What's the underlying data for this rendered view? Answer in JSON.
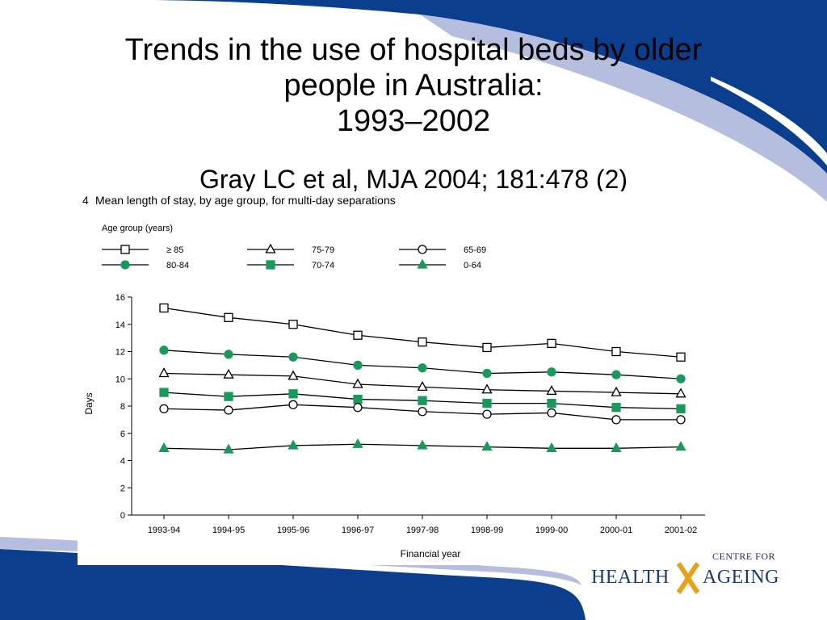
{
  "slide": {
    "title_lines": [
      "Trends in the use of hospital beds by older",
      "people in Australia:",
      "1993–2002"
    ],
    "citation": "Gray LC et al, MJA 2004; 181:478 (2)"
  },
  "logo": {
    "top_text": "CENTRE FOR",
    "left_word": "HEALTH",
    "right_word": "AGEING",
    "colors": {
      "text": "#1a3a7a",
      "x_mark": "#e8a21a"
    }
  },
  "colors": {
    "header_band": "#0b3f8e",
    "swoosh": "#b6bedf",
    "footer_band": "#0b3f8e",
    "series_green": "#1a9a5a",
    "series_black": "#000000"
  },
  "chart_data": {
    "type": "line",
    "figure_label": "4",
    "title": "Mean length of stay, by age group, for multi-day separations",
    "legend_title": "Age group (years)",
    "xlabel": "Financial year",
    "ylabel": "Days",
    "ylim": [
      0,
      16
    ],
    "yticks": [
      0,
      2,
      4,
      6,
      8,
      10,
      12,
      14,
      16
    ],
    "categories": [
      "1993-94",
      "1994-95",
      "1995-96",
      "1996-97",
      "1997-98",
      "1998-99",
      "1999-00",
      "2000-01",
      "2001-02"
    ],
    "series": [
      {
        "name": "≥ 85",
        "marker": "square-open",
        "color": "#000000",
        "values": [
          15.2,
          14.5,
          14.0,
          13.2,
          12.7,
          12.3,
          12.6,
          12.0,
          11.6
        ]
      },
      {
        "name": "80-84",
        "marker": "circle-filled",
        "color": "#1a9a5a",
        "values": [
          12.1,
          11.8,
          11.6,
          11.0,
          10.8,
          10.4,
          10.5,
          10.3,
          10.0
        ]
      },
      {
        "name": "75-79",
        "marker": "triangle-open",
        "color": "#000000",
        "values": [
          10.4,
          10.3,
          10.2,
          9.6,
          9.4,
          9.2,
          9.1,
          9.0,
          8.9
        ]
      },
      {
        "name": "70-74",
        "marker": "square-filled",
        "color": "#1a9a5a",
        "values": [
          9.0,
          8.7,
          8.9,
          8.5,
          8.4,
          8.2,
          8.2,
          7.9,
          7.8
        ]
      },
      {
        "name": "65-69",
        "marker": "circle-open",
        "color": "#000000",
        "values": [
          7.8,
          7.7,
          8.1,
          7.9,
          7.6,
          7.4,
          7.5,
          7.0,
          7.0
        ]
      },
      {
        "name": "0-64",
        "marker": "triangle-filled",
        "color": "#1a9a5a",
        "values": [
          4.9,
          4.8,
          5.1,
          5.2,
          5.1,
          5.0,
          4.9,
          4.9,
          5.0
        ]
      }
    ],
    "legend_order": [
      "≥ 85",
      "75-79",
      "65-69",
      "80-84",
      "70-74",
      "0-64"
    ],
    "grid": false,
    "legend_position": "top"
  }
}
